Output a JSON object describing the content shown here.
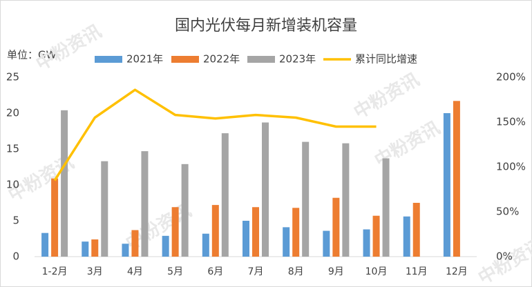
{
  "chart_data": {
    "type": "bar",
    "title": "国内光伏每月新增装机容量",
    "y_label": "单位：GW",
    "watermark": "中粉资讯",
    "categories": [
      "1-2月",
      "3月",
      "4月",
      "5月",
      "6月",
      "7月",
      "8月",
      "9月",
      "10月",
      "11月",
      "12月"
    ],
    "series": [
      {
        "name": "2021年",
        "type": "bar",
        "color": "#5b9bd5",
        "values": [
          3.3,
          2.1,
          1.8,
          2.9,
          3.2,
          5.0,
          4.1,
          3.6,
          3.8,
          5.6,
          20.0
        ]
      },
      {
        "name": "2022年",
        "type": "bar",
        "color": "#ed7d31",
        "values": [
          10.9,
          2.4,
          3.7,
          6.9,
          7.2,
          6.9,
          6.8,
          8.2,
          5.7,
          7.5,
          21.7
        ]
      },
      {
        "name": "2023年",
        "type": "bar",
        "color": "#a5a5a5",
        "values": [
          20.4,
          13.3,
          14.7,
          12.9,
          17.2,
          18.7,
          16.0,
          15.8,
          13.7,
          null,
          null
        ]
      },
      {
        "name": "累计同比增速",
        "type": "line",
        "axis": "y2",
        "color": "#ffc000",
        "values": [
          85,
          155,
          186,
          158,
          154,
          158,
          155,
          145,
          145,
          null,
          null
        ]
      }
    ],
    "ylim": [
      0,
      25
    ],
    "yticks": [
      0,
      5,
      10,
      15,
      20,
      25
    ],
    "y2lim": [
      0,
      200
    ],
    "y2ticks": [
      {
        "value": 0,
        "label": "0%"
      },
      {
        "value": 50,
        "label": "50%"
      },
      {
        "value": 100,
        "label": "100%"
      },
      {
        "value": 150,
        "label": "150%"
      },
      {
        "value": 200,
        "label": "200%"
      }
    ],
    "grid": false,
    "legend": "top"
  }
}
